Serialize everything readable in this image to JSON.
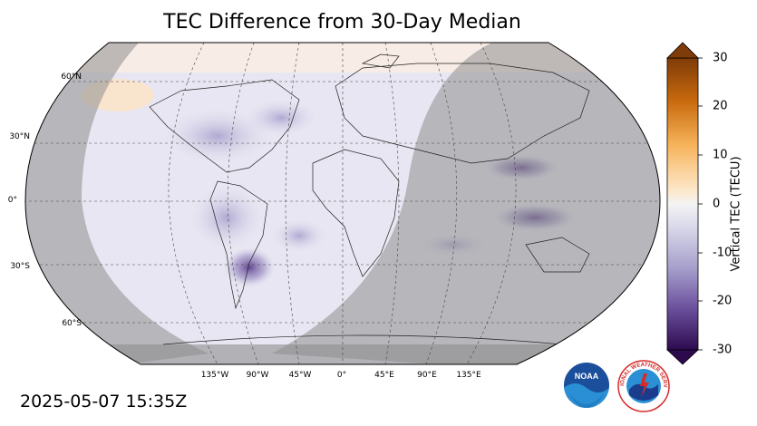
{
  "title": "TEC Difference from 30-Day Median",
  "timestamp": "2025-05-07 15:35Z",
  "colorbar": {
    "label": "Vertical TEC (TECU)",
    "ticks": [
      "30",
      "20",
      "10",
      "0",
      "-10",
      "-20",
      "-30"
    ],
    "range": [
      -30,
      30
    ]
  },
  "lat_labels": [
    "60°N",
    "30°N",
    "0°",
    "30°S",
    "60°S"
  ],
  "lon_labels": [
    "135°W",
    "90°W",
    "45°W",
    "0°",
    "45°E",
    "90°E",
    "135°E"
  ],
  "logos": {
    "noaa": "NOAA",
    "nws": "NATIONAL WEATHER SERVICE"
  },
  "colors": {
    "night_shade": "#9a9a9a",
    "negative_strong": "#3f0f6b",
    "positive_strong": "#7f3b08"
  }
}
